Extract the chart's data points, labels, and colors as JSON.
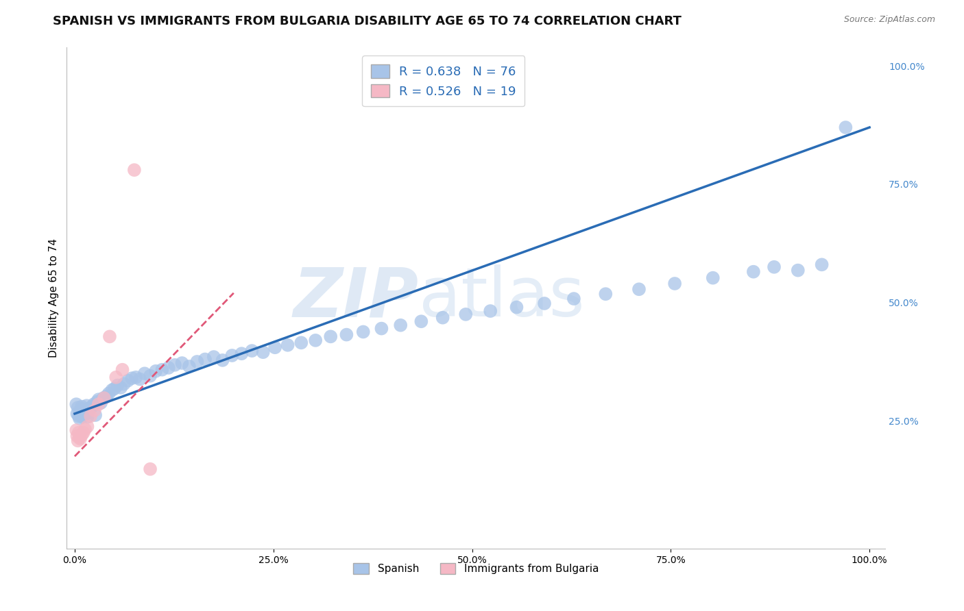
{
  "title": "SPANISH VS IMMIGRANTS FROM BULGARIA DISABILITY AGE 65 TO 74 CORRELATION CHART",
  "source_text": "Source: ZipAtlas.com",
  "ylabel": "Disability Age 65 to 74",
  "watermark_line1": "ZIP",
  "watermark_line2": "atlas",
  "spanish_R": 0.638,
  "spanish_N": 76,
  "bulgaria_R": 0.526,
  "bulgaria_N": 19,
  "spanish_color": "#a8c4e8",
  "spanish_line_color": "#2a6cb5",
  "bulgaria_color": "#f5b8c5",
  "bulgaria_line_color": "#e05878",
  "legend_color": "#2a6cb5",
  "background_color": "#ffffff",
  "grid_color": "#cccccc",
  "title_fontsize": 13,
  "axis_fontsize": 11,
  "tick_fontsize": 10,
  "right_tick_color": "#4488cc",
  "watermark_color": "#c5d8ee",
  "spanish_x": [
    0.002,
    0.003,
    0.004,
    0.005,
    0.006,
    0.007,
    0.008,
    0.009,
    0.01,
    0.011,
    0.012,
    0.013,
    0.015,
    0.016,
    0.017,
    0.018,
    0.02,
    0.022,
    0.024,
    0.026,
    0.028,
    0.03,
    0.033,
    0.036,
    0.04,
    0.043,
    0.047,
    0.05,
    0.054,
    0.058,
    0.062,
    0.067,
    0.072,
    0.077,
    0.082,
    0.088,
    0.095,
    0.102,
    0.11,
    0.118,
    0.126,
    0.135,
    0.144,
    0.154,
    0.164,
    0.175,
    0.186,
    0.198,
    0.21,
    0.223,
    0.237,
    0.252,
    0.268,
    0.285,
    0.303,
    0.322,
    0.342,
    0.363,
    0.386,
    0.41,
    0.436,
    0.463,
    0.492,
    0.523,
    0.556,
    0.591,
    0.628,
    0.668,
    0.71,
    0.755,
    0.803,
    0.854,
    0.88,
    0.91,
    0.94,
    0.97
  ],
  "spanish_y": [
    0.285,
    0.265,
    0.278,
    0.26,
    0.255,
    0.272,
    0.268,
    0.28,
    0.258,
    0.275,
    0.27,
    0.263,
    0.282,
    0.258,
    0.268,
    0.275,
    0.278,
    0.28,
    0.285,
    0.262,
    0.29,
    0.295,
    0.288,
    0.298,
    0.302,
    0.308,
    0.315,
    0.318,
    0.325,
    0.32,
    0.328,
    0.335,
    0.34,
    0.342,
    0.338,
    0.35,
    0.345,
    0.355,
    0.358,
    0.362,
    0.368,
    0.372,
    0.365,
    0.375,
    0.38,
    0.385,
    0.378,
    0.388,
    0.392,
    0.398,
    0.395,
    0.405,
    0.41,
    0.415,
    0.42,
    0.428,
    0.432,
    0.438,
    0.445,
    0.452,
    0.46,
    0.468,
    0.475,
    0.482,
    0.49,
    0.498,
    0.508,
    0.518,
    0.528,
    0.54,
    0.552,
    0.565,
    0.575,
    0.568,
    0.58,
    0.87
  ],
  "bulgaria_x": [
    0.002,
    0.003,
    0.004,
    0.005,
    0.006,
    0.007,
    0.009,
    0.011,
    0.013,
    0.016,
    0.02,
    0.025,
    0.03,
    0.037,
    0.044,
    0.052,
    0.06,
    0.075,
    0.095
  ],
  "bulgaria_y": [
    0.23,
    0.218,
    0.208,
    0.225,
    0.215,
    0.212,
    0.22,
    0.225,
    0.232,
    0.238,
    0.26,
    0.272,
    0.285,
    0.298,
    0.428,
    0.342,
    0.358,
    0.78,
    0.148
  ],
  "spanish_line_x": [
    0.0,
    1.0
  ],
  "spanish_line_y": [
    0.265,
    0.87
  ],
  "bulgaria_line_x": [
    0.0,
    0.2
  ],
  "bulgaria_line_y": [
    0.175,
    0.52
  ],
  "xlim": [
    -0.01,
    1.02
  ],
  "ylim": [
    -0.02,
    1.04
  ],
  "xticks": [
    0.0,
    0.25,
    0.5,
    0.75,
    1.0
  ],
  "xtick_labels": [
    "0.0%",
    "25.0%",
    "50.0%",
    "75.0%",
    "100.0%"
  ],
  "yticks_right": [
    0.0,
    0.25,
    0.5,
    0.75,
    1.0
  ],
  "ytick_labels_right": [
    "",
    "25.0%",
    "50.0%",
    "75.0%",
    "100.0%"
  ]
}
